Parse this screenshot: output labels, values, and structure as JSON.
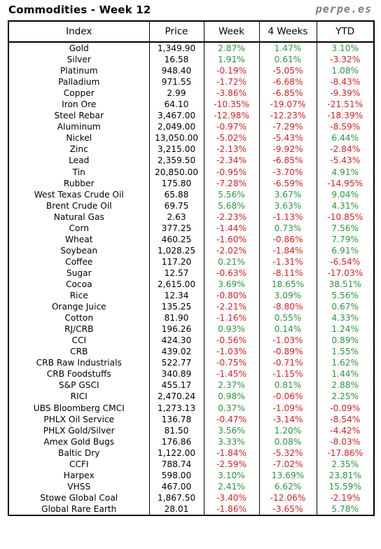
{
  "header": {
    "title": "Commodities - Week 12",
    "brand": "perpe.es"
  },
  "columns": [
    "Index",
    "Price",
    "Week",
    "4 Weeks",
    "YTD"
  ],
  "colors": {
    "positive": "#2a9a3a",
    "negative": "#e02020"
  },
  "rows": [
    [
      "Gold",
      "1,349.90",
      "2.87%",
      "1.47%",
      "3.10%"
    ],
    [
      "Silver",
      "16.58",
      "1.91%",
      "0.61%",
      "-3.32%"
    ],
    [
      "Platinum",
      "948.40",
      "-0.19%",
      "-5.05%",
      "1.08%"
    ],
    [
      "Palladium",
      "971.55",
      "-1.72%",
      "-6.68%",
      "-8.43%"
    ],
    [
      "Copper",
      "2.99",
      "-3.86%",
      "-6.85%",
      "-9.39%"
    ],
    [
      "Iron Ore",
      "64.10",
      "-10.35%",
      "-19.07%",
      "-21.51%"
    ],
    [
      "Steel Rebar",
      "3,467.00",
      "-12.98%",
      "-12.23%",
      "-18.39%"
    ],
    [
      "Aluminum",
      "2,049.00",
      "-0.97%",
      "-7.29%",
      "-8.59%"
    ],
    [
      "Nickel",
      "13,050.00",
      "-5.02%",
      "-5.43%",
      "6.44%"
    ],
    [
      "Zinc",
      "3,215.00",
      "-2.13%",
      "-9.92%",
      "-2.84%"
    ],
    [
      "Lead",
      "2,359.50",
      "-2.34%",
      "-6.85%",
      "-5.43%"
    ],
    [
      "Tin",
      "20,850.00",
      "-0.95%",
      "-3.70%",
      "4.91%"
    ],
    [
      "Rubber",
      "175.80",
      "-7.28%",
      "-6.59%",
      "-14.95%"
    ],
    [
      "West Texas Crude Oil",
      "65.88",
      "5.56%",
      "3.67%",
      "9.04%"
    ],
    [
      "Brent Crude Oil",
      "69.75",
      "5.68%",
      "3.63%",
      "4.31%"
    ],
    [
      "Natural Gas",
      "2.63",
      "-2.23%",
      "-1.13%",
      "-10.85%"
    ],
    [
      "Corn",
      "377.25",
      "-1.44%",
      "0.73%",
      "7.56%"
    ],
    [
      "Wheat",
      "460.25",
      "-1.60%",
      "-0.86%",
      "7.79%"
    ],
    [
      "Soybean",
      "1,028.25",
      "-2.02%",
      "-1.84%",
      "6.91%"
    ],
    [
      "Coffee",
      "117.20",
      "0.21%",
      "-1.31%",
      "-6.54%"
    ],
    [
      "Sugar",
      "12.57",
      "-0.63%",
      "-8.11%",
      "-17.03%"
    ],
    [
      "Cocoa",
      "2,615.00",
      "3.69%",
      "18.65%",
      "38.51%"
    ],
    [
      "Rice",
      "12.34",
      "-0.80%",
      "3.09%",
      "5.56%"
    ],
    [
      "Orange Juice",
      "135.25",
      "-2.21%",
      "-8.80%",
      "0.67%"
    ],
    [
      "Cotton",
      "81.90",
      "-1.16%",
      "0.55%",
      "4.33%"
    ],
    [
      "RJ/CRB",
      "196.26",
      "0.93%",
      "0.14%",
      "1.24%"
    ],
    [
      "CCI",
      "424.30",
      "-0.56%",
      "-1.03%",
      "0.89%"
    ],
    [
      "CRB",
      "439.02",
      "-1.03%",
      "-0.89%",
      "1.55%"
    ],
    [
      "CRB Raw Industrials",
      "522.77",
      "-0.75%",
      "-0.71%",
      "1.62%"
    ],
    [
      "CRB Foodstuffs",
      "340.89",
      "-1.45%",
      "-1.15%",
      "1.44%"
    ],
    [
      "S&P GSCI",
      "455.17",
      "2.37%",
      "0.81%",
      "2.88%"
    ],
    [
      "RICI",
      "2,470.24",
      "0.98%",
      "-0.06%",
      "2.25%"
    ],
    [
      "UBS Bloomberg CMCI",
      "1,273.13",
      "0.37%",
      "-1.09%",
      "-0.09%"
    ],
    [
      "PHLX Oil Service",
      "136.78",
      "-0.47%",
      "-3.14%",
      "-8.54%"
    ],
    [
      "PHLX Gold/Silver",
      "81.50",
      "3.56%",
      "1.20%",
      "-4.42%"
    ],
    [
      "Amex Gold Bugs",
      "176.86",
      "3.33%",
      "0.08%",
      "-8.03%"
    ],
    [
      "Baltic Dry",
      "1,122.00",
      "-1.84%",
      "-5.32%",
      "-17.86%"
    ],
    [
      "CCFI",
      "788.74",
      "-2.59%",
      "-7.02%",
      "2.35%"
    ],
    [
      "Harpex",
      "598.00",
      "3.10%",
      "13.69%",
      "23.81%"
    ],
    [
      "VHSS",
      "467.00",
      "2.41%",
      "6.62%",
      "15.59%"
    ],
    [
      "Stowe Global Coal",
      "1,867.50",
      "-3.40%",
      "-12.06%",
      "-2.19%"
    ],
    [
      "Global Rare Earth",
      "28.01",
      "-1.86%",
      "-3.65%",
      "5.78%"
    ]
  ]
}
